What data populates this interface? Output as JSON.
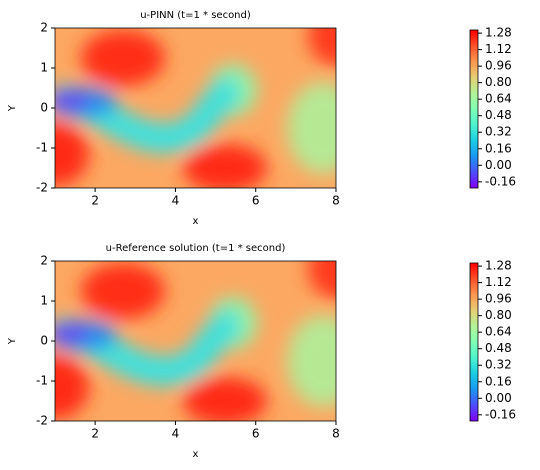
{
  "chart_data": [
    {
      "type": "contour",
      "title": "u-PINN (t=1 * second)",
      "xlabel": "x",
      "ylabel": "Y",
      "xlim": [
        1,
        8
      ],
      "ylim": [
        -2,
        2
      ],
      "xticks": [
        2,
        4,
        6,
        8
      ],
      "yticks": [
        -2,
        -1,
        0,
        1,
        2
      ],
      "colormap": "rainbow",
      "clim": [
        -0.22,
        1.31
      ],
      "colorbar_ticks": [
        -0.16,
        {
          "value": 0,
          "label": "0.00"
        },
        0.16,
        0.32,
        0.48,
        0.64,
        {
          "value": 0.8,
          "label": "0.80"
        },
        0.96,
        1.12,
        1.28
      ]
    },
    {
      "type": "contour",
      "title": "u-Reference solution (t=1 * second)",
      "xlabel": "x",
      "ylabel": "Y",
      "xlim": [
        1,
        8
      ],
      "ylim": [
        -2,
        2
      ],
      "xticks": [
        2,
        4,
        6,
        8
      ],
      "yticks": [
        -2,
        -1,
        0,
        1,
        2
      ],
      "colormap": "rainbow",
      "clim": [
        -0.22,
        1.31
      ],
      "colorbar_ticks": [
        -0.16,
        {
          "value": 0,
          "label": "0.00"
        },
        0.16,
        0.32,
        0.48,
        0.64,
        {
          "value": 0.8,
          "label": "0.80"
        },
        0.96,
        1.12,
        1.28
      ]
    }
  ]
}
